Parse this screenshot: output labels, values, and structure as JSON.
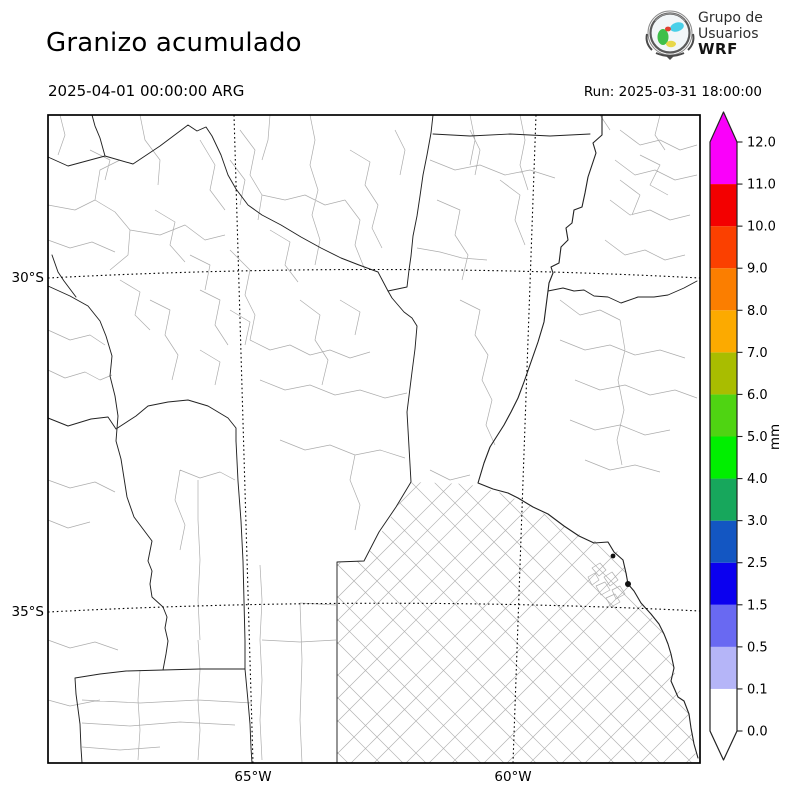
{
  "header": {
    "title": "Granizo acumulado",
    "valid_datetime": "2025-04-01 00:00:00 ARG",
    "run_label": "Run: 2025-03-31 18:00:00"
  },
  "logo": {
    "line1": "Grupo de",
    "line2": "Usuarios",
    "line3": "WRF"
  },
  "map": {
    "lat_ticks": [
      {
        "label": "30°S"
      },
      {
        "label": "35°S"
      }
    ],
    "lon_ticks": [
      {
        "label": "65°W"
      },
      {
        "label": "60°W"
      }
    ]
  },
  "colorbar": {
    "unit": "mm",
    "levels": [
      "0.0",
      "0.1",
      "0.5",
      "1.5",
      "2.5",
      "3.0",
      "4.0",
      "5.0",
      "6.0",
      "7.0",
      "8.0",
      "9.0",
      "10.0",
      "11.0",
      "12.0"
    ],
    "colors": [
      "#ffffff",
      "#b5b5f8",
      "#6969f2",
      "#0b00ef",
      "#1356c2",
      "#17a75c",
      "#00ef00",
      "#4fd412",
      "#a9bd00",
      "#fcaa00",
      "#fb7e00",
      "#fb4000",
      "#f30000",
      "#fa00fa"
    ],
    "over_color": "#fa00fa",
    "under_color": "#ffffff",
    "frame_color": "#222222"
  }
}
